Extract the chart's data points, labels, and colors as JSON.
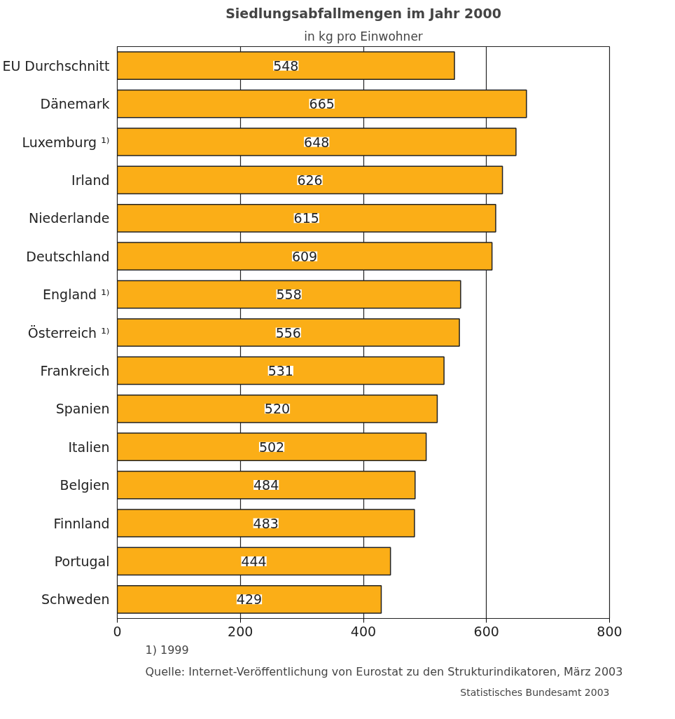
{
  "chart_data": {
    "type": "bar",
    "orientation": "horizontal",
    "title": "Siedlungsabfallmengen im Jahr 2000",
    "subtitle": "in kg pro Einwohner",
    "categories": [
      "EU Durchschnitt",
      "Dänemark",
      "Luxemburg ¹⁾",
      "Irland",
      "Niederlande",
      "Deutschland",
      "England ¹⁾",
      "Österreich ¹⁾",
      "Frankreich",
      "Spanien",
      "Italien",
      "Belgien",
      "Finnland",
      "Portugal",
      "Schweden"
    ],
    "values": [
      548,
      665,
      648,
      626,
      615,
      609,
      558,
      556,
      531,
      520,
      502,
      484,
      483,
      444,
      429
    ],
    "color": "#fbae17",
    "xlim": [
      0,
      800
    ],
    "xticks": [
      0,
      200,
      400,
      600,
      800
    ],
    "grid": "x",
    "data_labels": true,
    "annotations": [
      "1) 1999",
      "Quelle: Internet-Veröffentlichung von Eurostat zu den Strukturindikatoren, März 2003",
      "Statistisches Bundesamt 2003"
    ]
  }
}
